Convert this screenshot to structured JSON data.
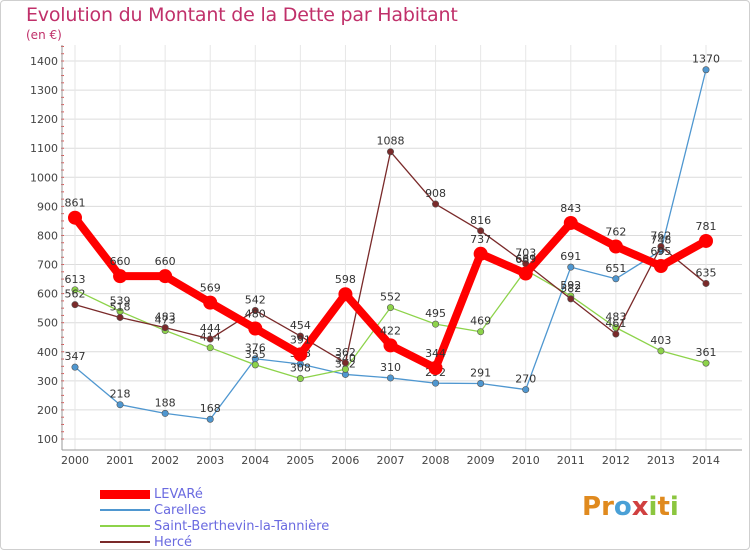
{
  "chart_data": {
    "type": "line",
    "title": "Evolution du Montant de la Dette par Habitant",
    "subtitle": "(en €)",
    "xlabel": "",
    "ylabel": "",
    "ylim": [
      100,
      1450
    ],
    "yticks": [
      100,
      200,
      300,
      400,
      500,
      600,
      700,
      800,
      900,
      1000,
      1100,
      1200,
      1300,
      1400
    ],
    "x": [
      "2000",
      "2001",
      "2002",
      "2003",
      "2004",
      "2005",
      "2006",
      "2007",
      "2008",
      "2009",
      "2010",
      "2011",
      "2012",
      "2013",
      "2014"
    ],
    "grid": true,
    "legend_position": "bottom-left",
    "series": [
      {
        "name": "LEVARé",
        "color": "#ff0000",
        "values": [
          861,
          660,
          660,
          569,
          480,
          391,
          598,
          422,
          344,
          737,
          669,
          843,
          762,
          695,
          781
        ]
      },
      {
        "name": "Carelles",
        "color": "#4f97d0",
        "values": [
          347,
          218,
          188,
          168,
          376,
          358,
          322,
          310,
          292,
          291,
          270,
          691,
          651,
          748,
          1370
        ]
      },
      {
        "name": "Saint-Berthevin-la-Tannière",
        "color": "#8dd34a",
        "values": [
          613,
          539,
          473,
          414,
          355,
          308,
          340,
          552,
          495,
          469,
          681,
          592,
          483,
          403,
          361
        ]
      },
      {
        "name": "Hercé",
        "color": "#7a2a2a",
        "values": [
          562,
          518,
          483,
          444,
          542,
          454,
          362,
          1088,
          908,
          816,
          703,
          582,
          461,
          762,
          635
        ]
      }
    ]
  },
  "brand": [
    "P",
    "r",
    "o",
    "x",
    "i",
    "t",
    "i"
  ]
}
